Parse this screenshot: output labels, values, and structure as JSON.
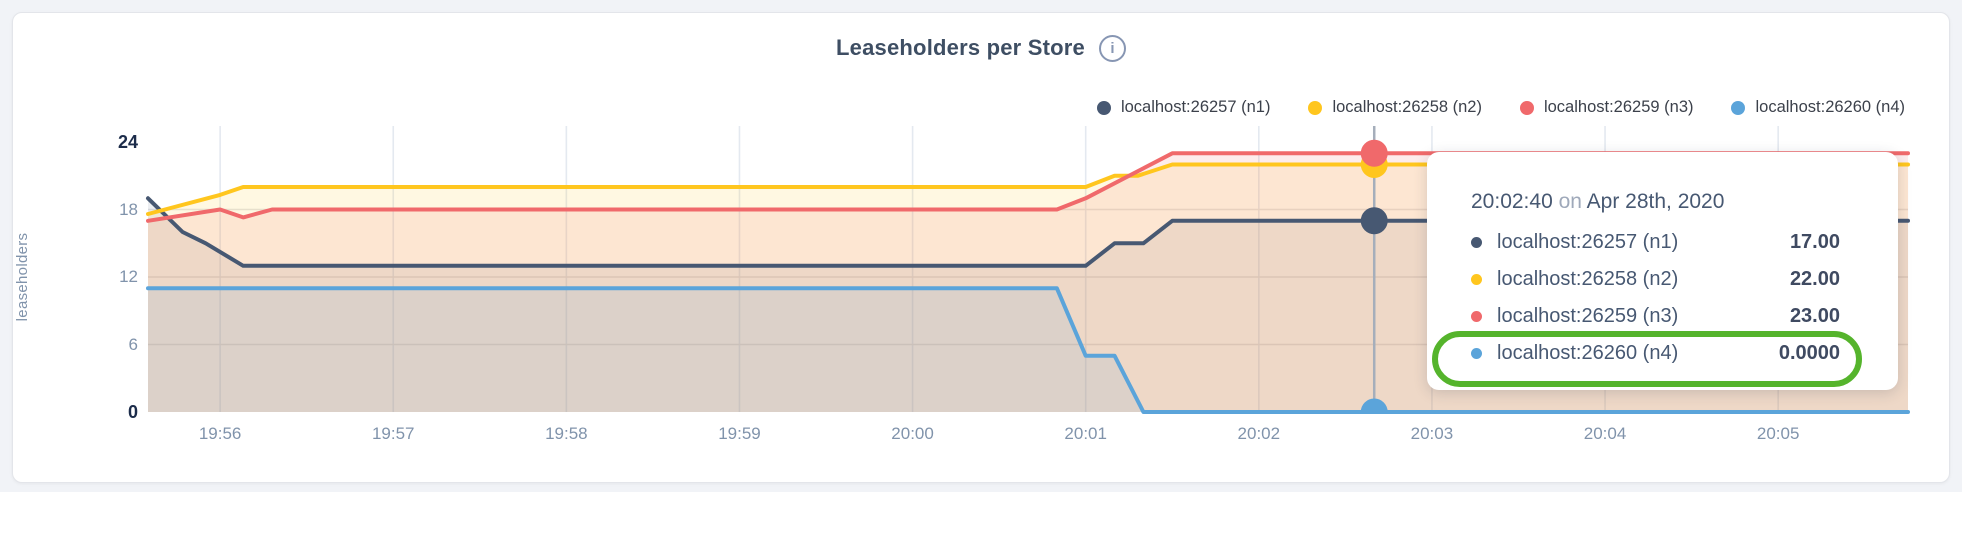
{
  "header": {
    "title": "Leaseholders per Store",
    "info_icon_glyph": "i"
  },
  "axes": {
    "ylabel": "leaseholders"
  },
  "legend": {
    "items": [
      {
        "label": "localhost:26257 (n1)",
        "color": "#475872"
      },
      {
        "label": "localhost:26258 (n2)",
        "color": "#ffc61e"
      },
      {
        "label": "localhost:26259 (n3)",
        "color": "#f0696b"
      },
      {
        "label": "localhost:26260 (n4)",
        "color": "#5ba4da"
      }
    ]
  },
  "chart_data": {
    "type": "area",
    "title": "Leaseholders per Store",
    "ylabel": "leaseholders",
    "ylim": [
      0,
      24
    ],
    "y_ticks": [
      0,
      6,
      12,
      18,
      24
    ],
    "y_ticks_bold": [
      0,
      24
    ],
    "x_ticks": [
      "19:56",
      "19:57",
      "19:58",
      "19:59",
      "20:00",
      "20:01",
      "20:02",
      "20:03",
      "20:04",
      "20:05"
    ],
    "x_domain": [
      "19:55:35",
      "20:05:45"
    ],
    "grid": true,
    "legend_position": "top-right",
    "series": [
      {
        "name": "localhost:26257 (n1)",
        "color": "#475872",
        "points": [
          [
            "19:55:35",
            19
          ],
          [
            "19:55:47",
            16
          ],
          [
            "19:55:55",
            15
          ],
          [
            "19:56:08",
            13
          ],
          [
            "20:01:00",
            13
          ],
          [
            "20:01:10",
            15
          ],
          [
            "20:01:20",
            15
          ],
          [
            "20:01:30",
            17
          ],
          [
            "20:05:45",
            17
          ]
        ]
      },
      {
        "name": "localhost:26258 (n2)",
        "color": "#ffc61e",
        "points": [
          [
            "19:55:35",
            17.6
          ],
          [
            "19:56:00",
            19.3
          ],
          [
            "19:56:08",
            20
          ],
          [
            "20:01:00",
            20
          ],
          [
            "20:01:10",
            21
          ],
          [
            "20:01:18",
            21
          ],
          [
            "20:01:30",
            22
          ],
          [
            "20:05:45",
            22
          ]
        ]
      },
      {
        "name": "localhost:26259 (n3)",
        "color": "#f0696b",
        "points": [
          [
            "19:55:35",
            17
          ],
          [
            "19:56:00",
            18
          ],
          [
            "19:56:08",
            17.3
          ],
          [
            "19:56:18",
            18
          ],
          [
            "20:00:50",
            18
          ],
          [
            "20:01:00",
            19
          ],
          [
            "20:01:30",
            23
          ],
          [
            "20:05:45",
            23
          ]
        ]
      },
      {
        "name": "localhost:26260 (n4)",
        "color": "#5ba4da",
        "points": [
          [
            "19:55:35",
            11
          ],
          [
            "20:00:50",
            11
          ],
          [
            "20:01:00",
            5
          ],
          [
            "20:01:10",
            5
          ],
          [
            "20:01:20",
            0
          ],
          [
            "20:05:45",
            0
          ]
        ]
      }
    ],
    "hover": {
      "time": "20:02:40",
      "values": [
        17,
        22,
        23,
        0
      ]
    }
  },
  "tooltip": {
    "time": "20:02:40",
    "separator": "on",
    "date": "Apr 28th, 2020",
    "rows": [
      {
        "label": "localhost:26257 (n1)",
        "value": "17.00",
        "color": "#475872"
      },
      {
        "label": "localhost:26258 (n2)",
        "value": "22.00",
        "color": "#ffc61e"
      },
      {
        "label": "localhost:26259 (n3)",
        "value": "23.00",
        "color": "#f0696b"
      },
      {
        "label": "localhost:26260 (n4)",
        "value": "0.0000",
        "color": "#5ba4da"
      }
    ],
    "highlighted_row_index": 3,
    "highlight_color": "#55b42c"
  },
  "colors": {
    "grid_vertical": "#e4e9f0",
    "grid_horizontal": "#e4e4e6",
    "hover_line": "#a5aebb",
    "tick_light": "#8093ab",
    "tick_bold": "#1c2c4a"
  }
}
